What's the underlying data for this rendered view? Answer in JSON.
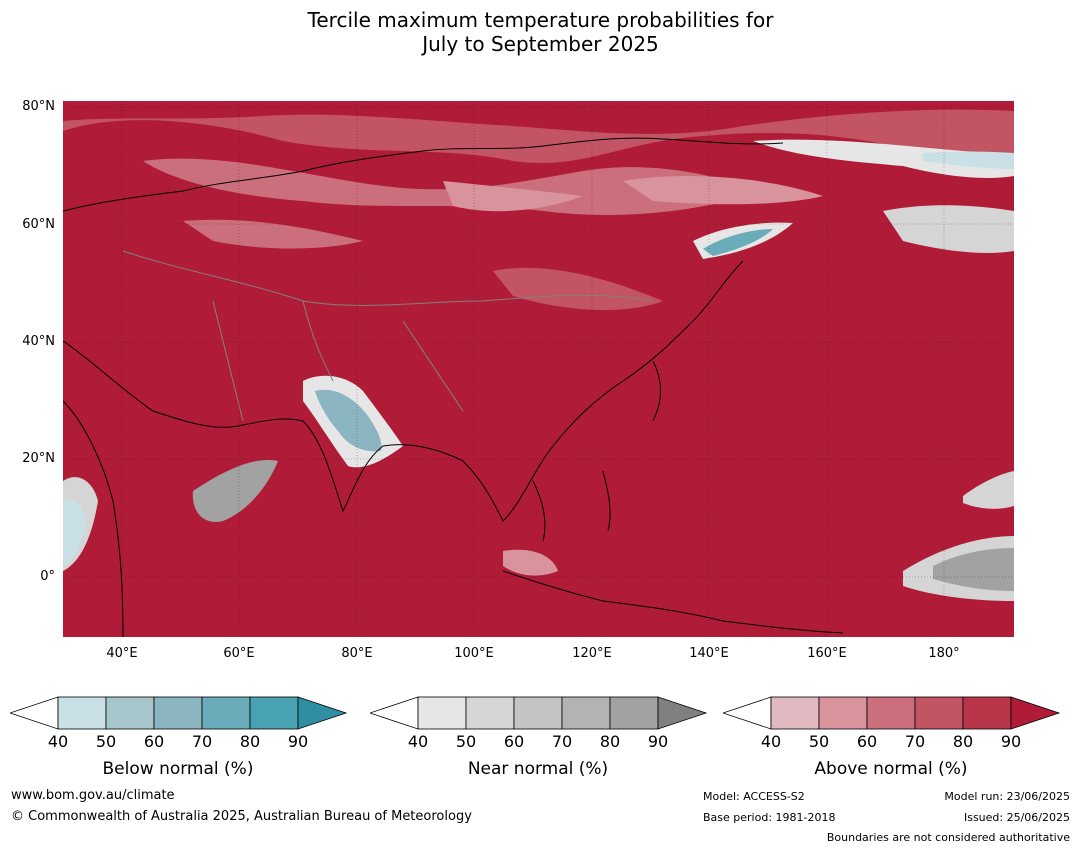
{
  "title_line1": "Tercile maximum temperature probabilities for",
  "title_line2": "July to September 2025",
  "lat_labels": [
    "80°N",
    "60°N",
    "40°N",
    "20°N",
    "0°"
  ],
  "lon_labels": [
    "40°E",
    "60°E",
    "80°E",
    "100°E",
    "120°E",
    "140°E",
    "160°E",
    "180°"
  ],
  "colorbars": [
    {
      "name": "Below normal (%)",
      "ticks": [
        "40",
        "50",
        "60",
        "70",
        "80",
        "90"
      ],
      "colors": [
        "#c8e0e6",
        "#a6c6cc",
        "#8ab5c1",
        "#6aacb9",
        "#49a2b2",
        "#2f8fa0"
      ]
    },
    {
      "name": "Near normal (%)",
      "ticks": [
        "40",
        "50",
        "60",
        "70",
        "80",
        "90"
      ],
      "colors": [
        "#e6e6e6",
        "#d5d5d5",
        "#c4c4c4",
        "#b3b3b3",
        "#a2a2a2",
        "#808080"
      ]
    },
    {
      "name": "Above normal (%)",
      "ticks": [
        "40",
        "50",
        "60",
        "70",
        "80",
        "90"
      ],
      "colors": [
        "#e0b8bf",
        "#d8939c",
        "#cc6f7c",
        "#c25464",
        "#b8354a",
        "#b01c38"
      ]
    }
  ],
  "footer": {
    "url": "www.bom.gov.au/climate",
    "copyright": "© Commonwealth of Australia 2025, Australian Bureau of Meteorology",
    "model": "Model: ACCESS-S2",
    "base_period": "Base period: 1981-2018",
    "model_run": "Model run: 23/06/2025",
    "issued": "Issued: 25/06/2025",
    "disclaimer": "Boundaries are not considered authoritative"
  },
  "colors": {
    "above_max": "#b01c38",
    "below_mid": "#8ab5c1",
    "near_mid": "#b3b3b3"
  }
}
